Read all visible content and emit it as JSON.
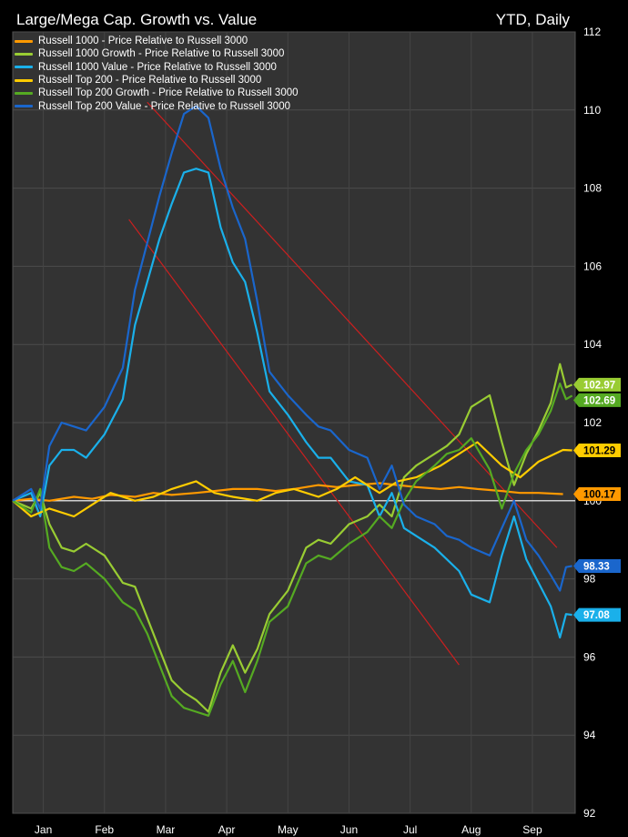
{
  "chart_data": {
    "type": "line",
    "title": "Large/Mega Cap. Growth vs. Value",
    "period_label": "YTD, Daily",
    "xlabel": "",
    "ylabel": "",
    "ylim": [
      92,
      112
    ],
    "y_ticks": [
      92,
      94,
      96,
      98,
      100,
      102,
      104,
      106,
      108,
      110,
      112
    ],
    "x_ticks": [
      "Jan",
      "Feb",
      "Mar",
      "Apr",
      "May",
      "Jun",
      "Jul",
      "Aug",
      "Sep"
    ],
    "x_tick_positions": [
      0.5,
      1.5,
      2.5,
      3.5,
      4.5,
      5.5,
      6.5,
      7.5,
      8.5
    ],
    "xlim": [
      0,
      9.2
    ],
    "grid": true,
    "legend_position": "top-left",
    "baseline": 100,
    "series": [
      {
        "name": "Russell 1000 - Price Relative to Russell 3000",
        "color": "#ff9900",
        "last_label": "100.17",
        "x": [
          0,
          0.3,
          0.6,
          1.0,
          1.3,
          1.6,
          2.0,
          2.3,
          2.6,
          3.0,
          3.3,
          3.6,
          4.0,
          4.3,
          4.6,
          5.0,
          5.3,
          5.6,
          6.0,
          6.3,
          6.6,
          7.0,
          7.3,
          7.6,
          8.0,
          8.3,
          8.6,
          9.0
        ],
        "values": [
          100.0,
          100.05,
          100.0,
          100.1,
          100.05,
          100.15,
          100.1,
          100.2,
          100.15,
          100.2,
          100.25,
          100.3,
          100.3,
          100.25,
          100.3,
          100.4,
          100.35,
          100.4,
          100.45,
          100.4,
          100.35,
          100.3,
          100.35,
          100.3,
          100.25,
          100.2,
          100.2,
          100.17
        ]
      },
      {
        "name": "Russell 1000 Growth - Price Relative to Russell 3000",
        "color": "#99cc33",
        "last_label": "102.97",
        "x": [
          0,
          0.3,
          0.45,
          0.6,
          0.8,
          1.0,
          1.2,
          1.5,
          1.8,
          2.0,
          2.2,
          2.4,
          2.6,
          2.8,
          3.0,
          3.2,
          3.4,
          3.6,
          3.8,
          4.0,
          4.2,
          4.5,
          4.8,
          5.0,
          5.2,
          5.5,
          5.8,
          6.0,
          6.2,
          6.4,
          6.6,
          6.9,
          7.1,
          7.3,
          7.5,
          7.8,
          8.0,
          8.2,
          8.4,
          8.6,
          8.8,
          8.95,
          9.05,
          9.15
        ],
        "values": [
          100.0,
          99.8,
          100.2,
          99.4,
          98.8,
          98.7,
          98.9,
          98.6,
          97.9,
          97.8,
          97.0,
          96.2,
          95.4,
          95.1,
          94.9,
          94.6,
          95.6,
          96.3,
          95.6,
          96.2,
          97.1,
          97.7,
          98.8,
          99.0,
          98.9,
          99.4,
          99.6,
          99.9,
          99.6,
          100.6,
          100.9,
          101.2,
          101.4,
          101.7,
          102.4,
          102.7,
          101.5,
          100.4,
          101.2,
          101.8,
          102.5,
          103.5,
          102.9,
          102.97
        ]
      },
      {
        "name": "Russell 1000 Value - Price Relative to Russell 3000",
        "color": "#1ab0ea",
        "last_label": "97.08",
        "x": [
          0,
          0.3,
          0.45,
          0.6,
          0.8,
          1.0,
          1.2,
          1.5,
          1.8,
          2.0,
          2.2,
          2.4,
          2.6,
          2.8,
          3.0,
          3.2,
          3.4,
          3.6,
          3.8,
          4.0,
          4.2,
          4.5,
          4.8,
          5.0,
          5.2,
          5.5,
          5.8,
          6.0,
          6.2,
          6.4,
          6.6,
          6.9,
          7.1,
          7.3,
          7.5,
          7.8,
          8.0,
          8.2,
          8.4,
          8.6,
          8.8,
          8.95,
          9.05,
          9.15
        ],
        "values": [
          100.0,
          100.2,
          99.6,
          100.9,
          101.3,
          101.3,
          101.1,
          101.7,
          102.6,
          104.5,
          105.6,
          106.7,
          107.6,
          108.4,
          108.5,
          108.4,
          107.0,
          106.1,
          105.6,
          104.3,
          102.8,
          102.2,
          101.5,
          101.1,
          101.1,
          100.5,
          100.4,
          99.6,
          100.2,
          99.3,
          99.1,
          98.8,
          98.5,
          98.2,
          97.6,
          97.4,
          98.6,
          99.6,
          98.5,
          97.9,
          97.3,
          96.5,
          97.1,
          97.08
        ]
      },
      {
        "name": "Russell Top 200 - Price Relative to Russell 3000",
        "color": "#ffcc00",
        "last_label": "101.29",
        "x": [
          0,
          0.3,
          0.6,
          1.0,
          1.3,
          1.6,
          2.0,
          2.3,
          2.6,
          3.0,
          3.3,
          3.6,
          4.0,
          4.3,
          4.6,
          5.0,
          5.3,
          5.6,
          6.0,
          6.3,
          6.6,
          7.0,
          7.3,
          7.6,
          8.0,
          8.3,
          8.6,
          9.0,
          9.15
        ],
        "values": [
          100.0,
          99.6,
          99.8,
          99.6,
          99.9,
          100.2,
          100.0,
          100.1,
          100.3,
          100.5,
          100.2,
          100.1,
          100.0,
          100.2,
          100.3,
          100.1,
          100.3,
          100.6,
          100.2,
          100.5,
          100.6,
          100.9,
          101.2,
          101.5,
          100.9,
          100.6,
          101.0,
          101.3,
          101.29
        ]
      },
      {
        "name": "Russell Top 200 Growth - Price Relative to Russell 3000",
        "color": "#55aa22",
        "last_label": "102.69",
        "x": [
          0,
          0.3,
          0.45,
          0.6,
          0.8,
          1.0,
          1.2,
          1.5,
          1.8,
          2.0,
          2.2,
          2.4,
          2.6,
          2.8,
          3.0,
          3.2,
          3.4,
          3.6,
          3.8,
          4.0,
          4.2,
          4.5,
          4.8,
          5.0,
          5.2,
          5.5,
          5.8,
          6.0,
          6.2,
          6.4,
          6.6,
          6.9,
          7.1,
          7.3,
          7.5,
          7.8,
          8.0,
          8.2,
          8.4,
          8.6,
          8.8,
          8.95,
          9.05,
          9.15
        ],
        "values": [
          100.0,
          99.7,
          100.3,
          98.8,
          98.3,
          98.2,
          98.4,
          98.0,
          97.4,
          97.2,
          96.6,
          95.8,
          95.0,
          94.7,
          94.6,
          94.5,
          95.3,
          95.9,
          95.1,
          95.9,
          96.9,
          97.3,
          98.4,
          98.6,
          98.5,
          98.9,
          99.2,
          99.6,
          99.3,
          100.0,
          100.5,
          100.9,
          101.2,
          101.3,
          101.6,
          100.8,
          99.8,
          100.7,
          101.3,
          101.7,
          102.3,
          103.0,
          102.6,
          102.69
        ]
      },
      {
        "name": "Russell Top 200 Value - Price Relative to Russell 3000",
        "color": "#1a66cc",
        "last_label": "98.33",
        "x": [
          0,
          0.3,
          0.45,
          0.6,
          0.8,
          1.0,
          1.2,
          1.5,
          1.8,
          2.0,
          2.2,
          2.4,
          2.6,
          2.8,
          3.0,
          3.2,
          3.4,
          3.6,
          3.8,
          4.0,
          4.2,
          4.5,
          4.8,
          5.0,
          5.2,
          5.5,
          5.8,
          6.0,
          6.2,
          6.4,
          6.6,
          6.9,
          7.1,
          7.3,
          7.5,
          7.8,
          8.0,
          8.2,
          8.4,
          8.6,
          8.8,
          8.95,
          9.05,
          9.15
        ],
        "values": [
          100.0,
          100.3,
          99.8,
          101.4,
          102.0,
          101.9,
          101.8,
          102.4,
          103.4,
          105.4,
          106.6,
          107.8,
          108.9,
          109.9,
          110.1,
          109.8,
          108.5,
          107.5,
          106.7,
          105.1,
          103.3,
          102.7,
          102.2,
          101.9,
          101.8,
          101.3,
          101.1,
          100.3,
          100.9,
          99.9,
          99.6,
          99.4,
          99.1,
          99.0,
          98.8,
          98.6,
          99.3,
          100.0,
          99.0,
          98.6,
          98.1,
          97.7,
          98.3,
          98.33
        ]
      }
    ],
    "trend_lines": [
      {
        "color": "#cc1f1f",
        "x": [
          2.2,
          8.9
        ],
        "values": [
          110.2,
          98.8
        ]
      },
      {
        "color": "#cc1f1f",
        "x": [
          1.9,
          7.3
        ],
        "values": [
          107.2,
          95.8
        ]
      }
    ]
  }
}
